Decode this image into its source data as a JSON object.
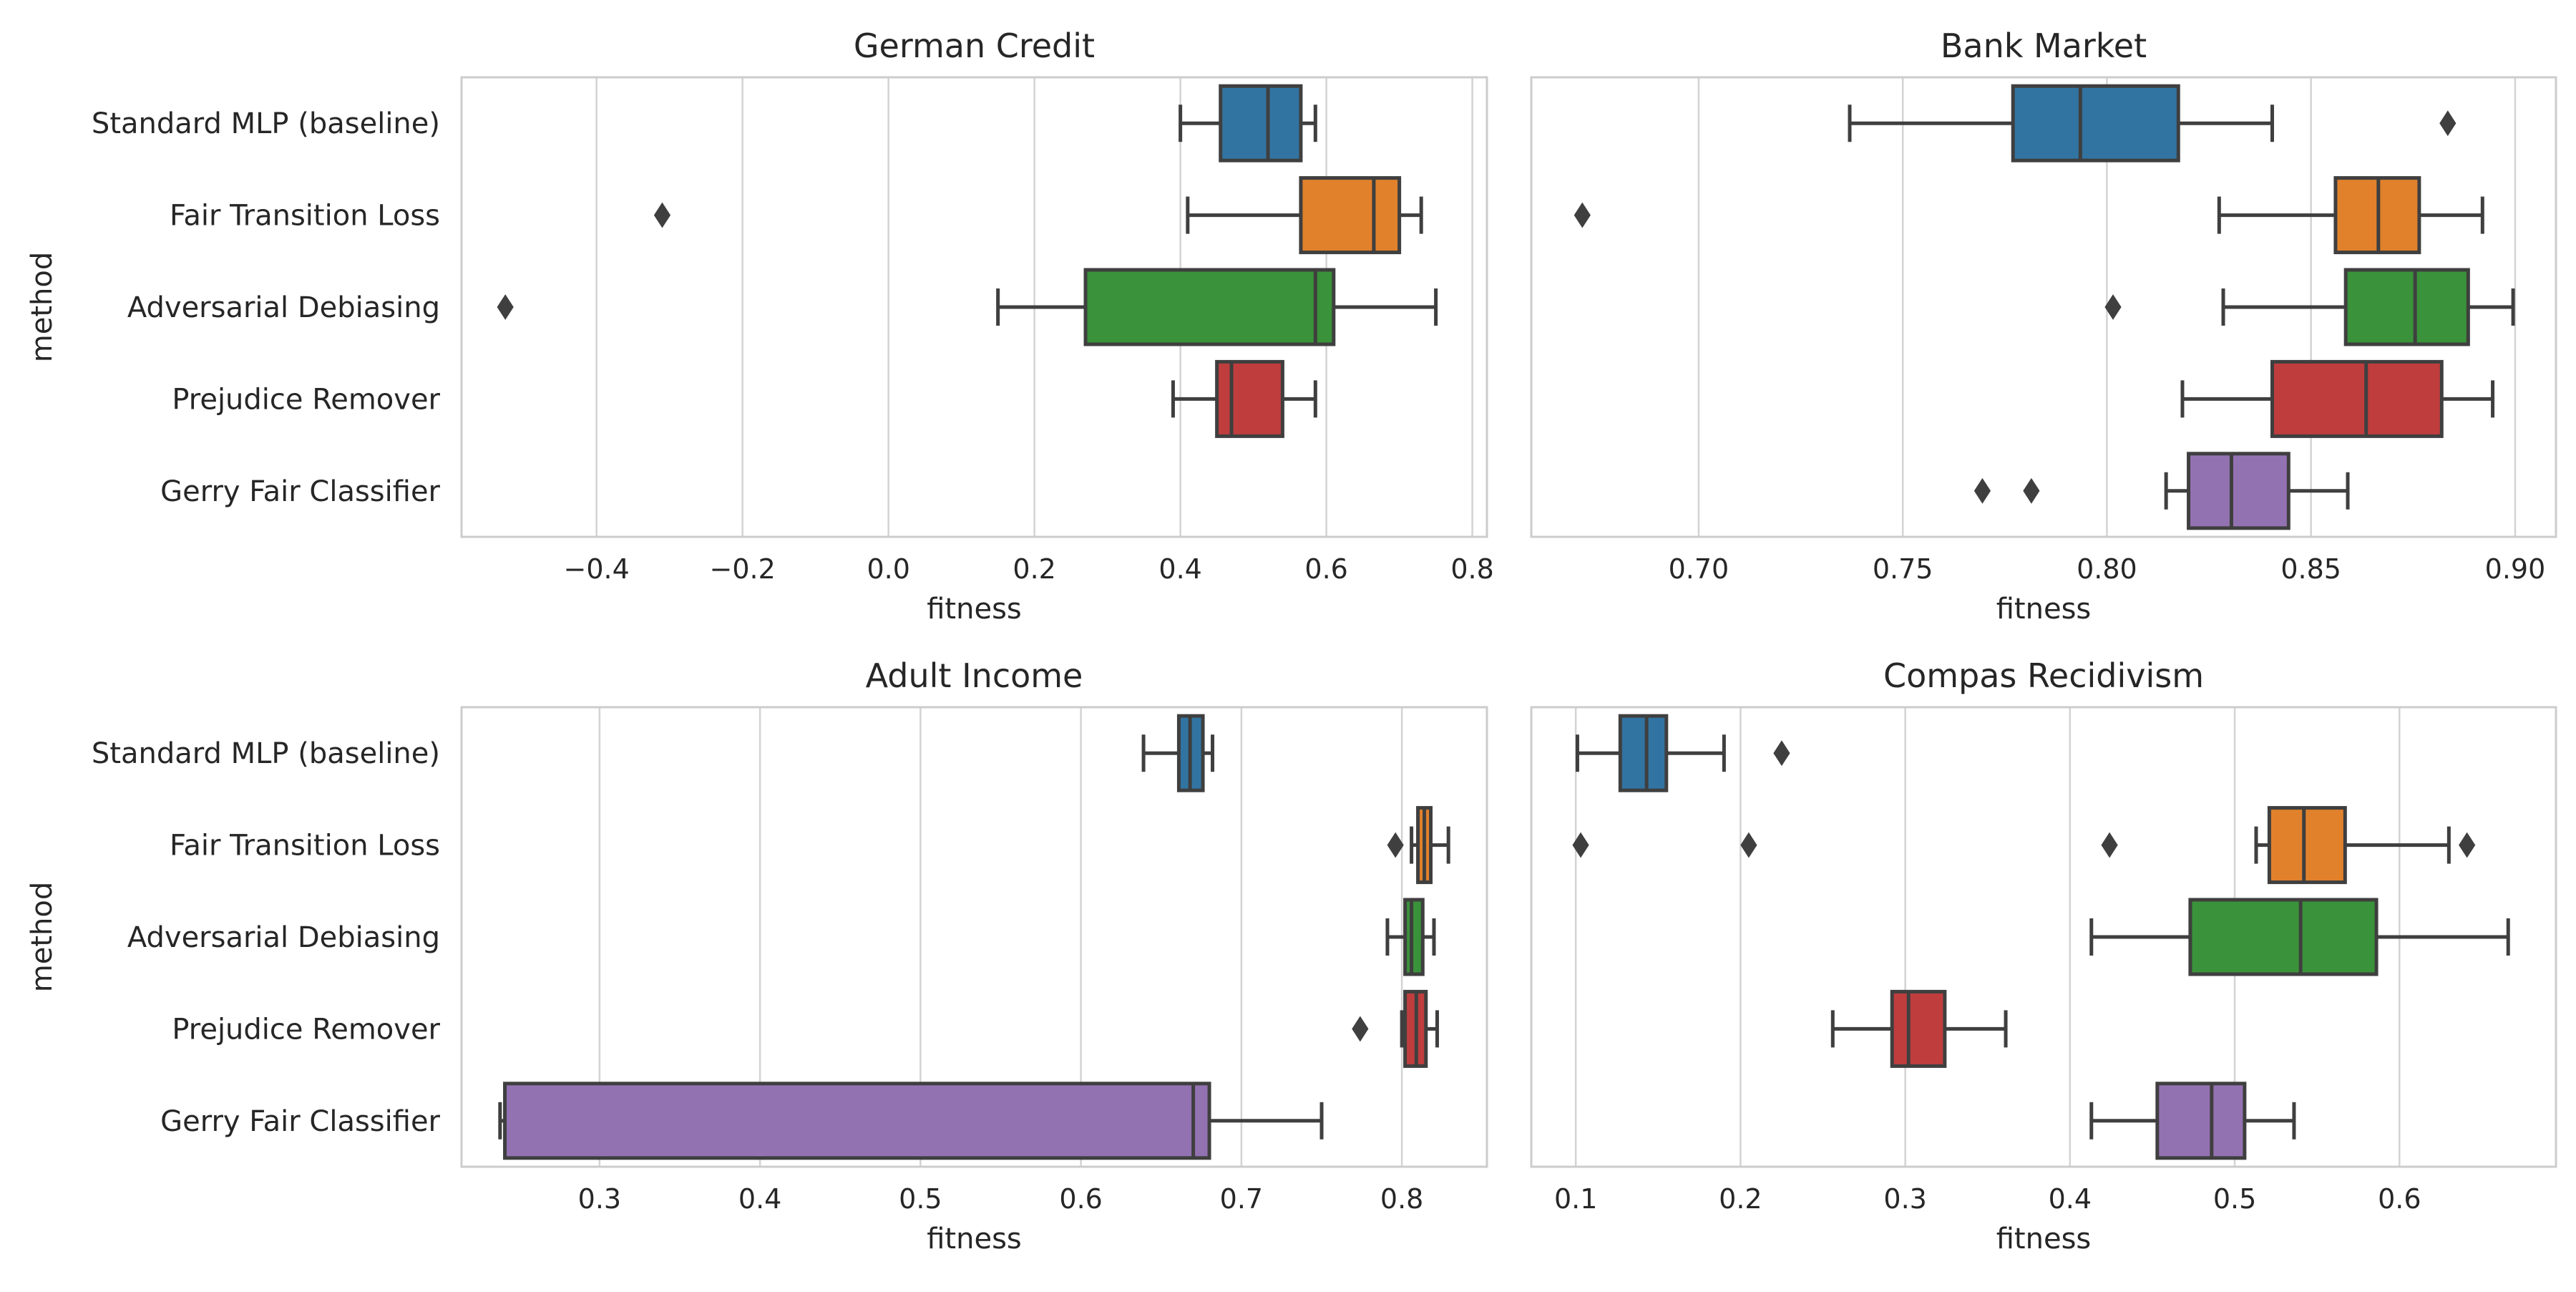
{
  "chart_data": [
    {
      "type": "box",
      "title": "German Credit",
      "xlabel": "fitness",
      "ylabel": "method",
      "xlim": [
        -0.585,
        0.82
      ],
      "xticks": [
        -0.4,
        -0.2,
        0.0,
        0.2,
        0.4,
        0.6,
        0.8
      ],
      "xtick_labels": [
        "−0.4",
        "−0.2",
        "0.0",
        "0.2",
        "0.4",
        "0.6",
        "0.8"
      ],
      "categories": [
        "Standard MLP (baseline)",
        "Fair Transition Loss",
        "Adversarial Debiasing",
        "Prejudice Remover",
        "Gerry Fair Classifier"
      ],
      "boxes": [
        {
          "whisker_low": 0.4,
          "q1": 0.455,
          "median": 0.52,
          "q3": 0.565,
          "whisker_high": 0.585,
          "outliers": []
        },
        {
          "whisker_low": 0.41,
          "q1": 0.565,
          "median": 0.665,
          "q3": 0.7,
          "whisker_high": 0.73,
          "outliers": [
            -0.31
          ]
        },
        {
          "whisker_low": 0.15,
          "q1": 0.27,
          "median": 0.585,
          "q3": 0.61,
          "whisker_high": 0.75,
          "outliers": [
            -0.525
          ]
        },
        {
          "whisker_low": 0.39,
          "q1": 0.45,
          "median": 0.47,
          "q3": 0.54,
          "whisker_high": 0.585,
          "outliers": []
        },
        {
          "whisker_low": null,
          "q1": null,
          "median": null,
          "q3": null,
          "whisker_high": null,
          "outliers": []
        }
      ],
      "grid": true
    },
    {
      "type": "box",
      "title": "Bank Market",
      "xlabel": "fitness",
      "ylabel": "",
      "xlim": [
        0.659,
        0.91
      ],
      "xticks": [
        0.7,
        0.75,
        0.8,
        0.85,
        0.9
      ],
      "xtick_labels": [
        "0.70",
        "0.75",
        "0.80",
        "0.85",
        "0.90"
      ],
      "categories": [
        "Standard MLP (baseline)",
        "Fair Transition Loss",
        "Adversarial Debiasing",
        "Prejudice Remover",
        "Gerry Fair Classifier"
      ],
      "boxes": [
        {
          "whisker_low": 0.737,
          "q1": 0.777,
          "median": 0.7935,
          "q3": 0.8175,
          "whisker_high": 0.8405,
          "outliers": [
            0.8835
          ]
        },
        {
          "whisker_low": 0.8275,
          "q1": 0.856,
          "median": 0.8665,
          "q3": 0.8765,
          "whisker_high": 0.892,
          "outliers": [
            0.6715
          ]
        },
        {
          "whisker_low": 0.8285,
          "q1": 0.8585,
          "median": 0.8755,
          "q3": 0.8885,
          "whisker_high": 0.8995,
          "outliers": [
            0.8015
          ]
        },
        {
          "whisker_low": 0.8185,
          "q1": 0.8405,
          "median": 0.8635,
          "q3": 0.882,
          "whisker_high": 0.8945,
          "outliers": []
        },
        {
          "whisker_low": 0.8145,
          "q1": 0.82,
          "median": 0.8305,
          "q3": 0.8445,
          "whisker_high": 0.859,
          "outliers": [
            0.7695,
            0.7815
          ]
        }
      ],
      "grid": true
    },
    {
      "type": "box",
      "title": "Adult Income",
      "xlabel": "fitness",
      "ylabel": "method",
      "xlim": [
        0.214,
        0.853
      ],
      "xticks": [
        0.3,
        0.4,
        0.5,
        0.6,
        0.7,
        0.8
      ],
      "xtick_labels": [
        "0.3",
        "0.4",
        "0.5",
        "0.6",
        "0.7",
        "0.8"
      ],
      "categories": [
        "Standard MLP (baseline)",
        "Fair Transition Loss",
        "Adversarial Debiasing",
        "Prejudice Remover",
        "Gerry Fair Classifier"
      ],
      "boxes": [
        {
          "whisker_low": 0.639,
          "q1": 0.661,
          "median": 0.668,
          "q3": 0.676,
          "whisker_high": 0.682,
          "outliers": []
        },
        {
          "whisker_low": 0.806,
          "q1": 0.81,
          "median": 0.814,
          "q3": 0.818,
          "whisker_high": 0.829,
          "outliers": [
            0.796
          ]
        },
        {
          "whisker_low": 0.791,
          "q1": 0.802,
          "median": 0.806,
          "q3": 0.813,
          "whisker_high": 0.82,
          "outliers": []
        },
        {
          "whisker_low": 0.8,
          "q1": 0.802,
          "median": 0.809,
          "q3": 0.815,
          "whisker_high": 0.822,
          "outliers": [
            0.774
          ]
        },
        {
          "whisker_low": 0.238,
          "q1": 0.241,
          "median": 0.67,
          "q3": 0.68,
          "whisker_high": 0.75,
          "outliers": []
        }
      ],
      "grid": true
    },
    {
      "type": "box",
      "title": "Compas Recidivism",
      "xlabel": "fitness",
      "ylabel": "",
      "xlim": [
        0.073,
        0.695
      ],
      "xticks": [
        0.1,
        0.2,
        0.3,
        0.4,
        0.5,
        0.6
      ],
      "xtick_labels": [
        "0.1",
        "0.2",
        "0.3",
        "0.4",
        "0.5",
        "0.6"
      ],
      "categories": [
        "Standard MLP (baseline)",
        "Fair Transition Loss",
        "Adversarial Debiasing",
        "Prejudice Remover",
        "Gerry Fair Classifier"
      ],
      "boxes": [
        {
          "whisker_low": 0.101,
          "q1": 0.127,
          "median": 0.143,
          "q3": 0.155,
          "whisker_high": 0.19,
          "outliers": [
            0.225
          ]
        },
        {
          "whisker_low": 0.513,
          "q1": 0.521,
          "median": 0.542,
          "q3": 0.567,
          "whisker_high": 0.63,
          "outliers": [
            0.103,
            0.205,
            0.424,
            0.641
          ]
        },
        {
          "whisker_low": 0.413,
          "q1": 0.473,
          "median": 0.54,
          "q3": 0.586,
          "whisker_high": 0.666,
          "outliers": []
        },
        {
          "whisker_low": 0.256,
          "q1": 0.292,
          "median": 0.302,
          "q3": 0.324,
          "whisker_high": 0.361,
          "outliers": []
        },
        {
          "whisker_low": 0.413,
          "q1": 0.453,
          "median": 0.486,
          "q3": 0.506,
          "whisker_high": 0.536,
          "outliers": []
        }
      ],
      "grid": true
    }
  ],
  "colors": {
    "series": [
      "#3274a1",
      "#e1812c",
      "#3a923a",
      "#c03d3e",
      "#9372b2"
    ],
    "line": "#3f3f3f",
    "grid": "#d3d3d3",
    "spine": "#cccccc",
    "text": "#262626"
  }
}
